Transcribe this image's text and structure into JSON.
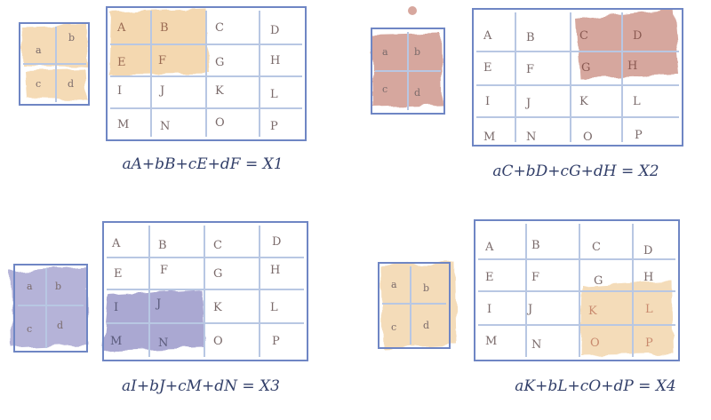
{
  "colors": {
    "frame": "#6f86c4",
    "grid": "#b8c7e3",
    "text": "#7a6a6a",
    "formula": "#33406a",
    "orange": "#f0c890",
    "red": "#c98a7e",
    "purple": "#8e8cc4",
    "peach": "#f3d6ad"
  },
  "kernel": {
    "labels": [
      "a",
      "b",
      "c",
      "d"
    ]
  },
  "matrix": {
    "labels": [
      "A",
      "B",
      "C",
      "D",
      "E",
      "F",
      "G",
      "H",
      "I",
      "J",
      "K",
      "L",
      "M",
      "N",
      "O",
      "P"
    ]
  },
  "panels": [
    {
      "formula": "aA+bB+cE+dF = X1",
      "highlight_cells": [
        "A",
        "B",
        "E",
        "F"
      ],
      "color": "orange"
    },
    {
      "formula": "aC+bD+cG+dH = X2",
      "highlight_cells": [
        "C",
        "D",
        "G",
        "H"
      ],
      "color": "red"
    },
    {
      "formula": "aI+bJ+cM+dN = X3",
      "highlight_cells": [
        "I",
        "J",
        "M",
        "N"
      ],
      "color": "purple"
    },
    {
      "formula": "aK+bL+cO+dP = X4",
      "highlight_cells": [
        "K",
        "L",
        "O",
        "P"
      ],
      "color": "peach"
    }
  ]
}
